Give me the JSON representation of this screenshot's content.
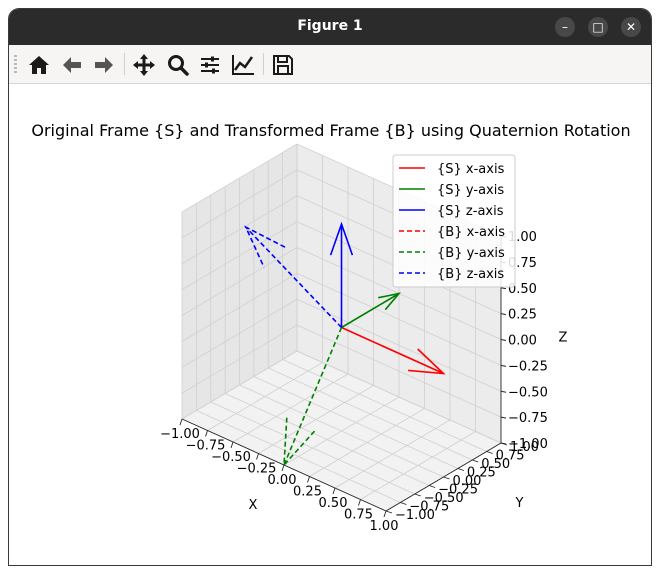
{
  "window": {
    "title": "Figure 1",
    "controls": [
      "–",
      "□",
      "✕"
    ]
  },
  "toolbar": {
    "buttons": [
      {
        "name": "home-icon",
        "label": "Home"
      },
      {
        "name": "back-icon",
        "label": "Back"
      },
      {
        "name": "forward-icon",
        "label": "Forward"
      },
      {
        "name": "pan-icon",
        "label": "Pan"
      },
      {
        "name": "zoom-icon",
        "label": "Zoom"
      },
      {
        "name": "subplots-icon",
        "label": "Configure subplots"
      },
      {
        "name": "axes-edit-icon",
        "label": "Edit axis"
      },
      {
        "name": "save-icon",
        "label": "Save"
      }
    ]
  },
  "chart_data": {
    "type": "line",
    "projection": "3d",
    "title": "Original Frame {S} and Transformed Frame {B} using Quaternion Rotation",
    "xlabel": "X",
    "ylabel": "Y",
    "zlabel": "Z",
    "xlim": [
      -1,
      1
    ],
    "ylim": [
      -1,
      1
    ],
    "zlim": [
      -1,
      1
    ],
    "xticks": [
      "−1.00",
      "−0.75",
      "−0.50",
      "−0.25",
      "0.00",
      "0.25",
      "0.50",
      "0.75",
      "1.00"
    ],
    "yticks": [
      "−1.00",
      "−0.75",
      "−0.50",
      "−0.25",
      "0.00",
      "0.25",
      "0.50",
      "0.75",
      "1.00"
    ],
    "zticks": [
      "−1.00",
      "−0.75",
      "−0.50",
      "−0.25",
      "0.00",
      "0.25",
      "0.50",
      "0.75",
      "1.00"
    ],
    "grid": true,
    "legend_position": "upper-right",
    "series": [
      {
        "name": "{S} x-axis",
        "color": "#ff0000",
        "style": "solid",
        "from": [
          0,
          0,
          0
        ],
        "to": [
          1,
          0,
          0
        ],
        "arrowhead": true
      },
      {
        "name": "{S} y-axis",
        "color": "#008000",
        "style": "solid",
        "from": [
          0,
          0,
          0
        ],
        "to": [
          0,
          1,
          0
        ],
        "arrowhead": true
      },
      {
        "name": "{S} z-axis",
        "color": "#0000ff",
        "style": "solid",
        "from": [
          0,
          0,
          0
        ],
        "to": [
          0,
          0,
          1
        ],
        "arrowhead": true
      },
      {
        "name": "{B} x-axis",
        "color": "#ff0000",
        "style": "dashed",
        "from": [
          0,
          0,
          0
        ],
        "to": [
          0,
          0,
          0
        ],
        "arrowhead": true
      },
      {
        "name": "{B} y-axis",
        "color": "#008000",
        "style": "dashed",
        "from": [
          0,
          0,
          0
        ],
        "to": [
          0,
          -1,
          -1
        ],
        "arrowhead": true
      },
      {
        "name": "{B} z-axis",
        "color": "#0000ff",
        "style": "dashed",
        "from": [
          0,
          0,
          0
        ],
        "to": [
          -0.6,
          -0.6,
          0.9
        ],
        "arrowhead": true
      }
    ]
  }
}
